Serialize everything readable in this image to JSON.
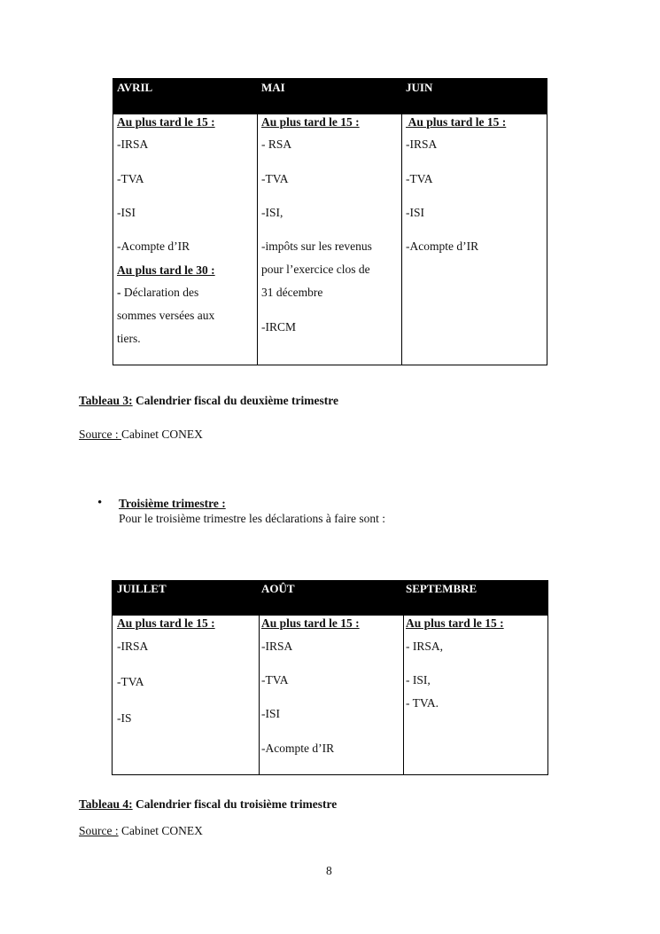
{
  "table3": {
    "headers": [
      "AVRIL",
      "MAI",
      "JUIN"
    ],
    "avril": {
      "deadline1": "Au plus tard le 15 :",
      "items1": [
        "-IRSA",
        "-TVA",
        "-ISI",
        "-Acompte d’IR"
      ],
      "deadline2": "Au plus tard le 30 :",
      "items2_dash": "-",
      "items2": [
        " Déclaration des",
        "sommes versées aux",
        "tiers."
      ]
    },
    "mai": {
      "deadline": "Au plus tard le 15 :",
      "items": [
        "- RSA",
        "-TVA",
        "-ISI,",
        "-impôts sur les revenus",
        "pour l’exercice clos de",
        "31 décembre",
        "-IRCM"
      ]
    },
    "juin": {
      "deadline": " Au plus tard le 15 :",
      "items": [
        "-IRSA",
        "-TVA",
        "-ISI",
        "-Acompte d’IR"
      ]
    },
    "caption_label": "Tableau 3:",
    "caption_text": " Calendrier fiscal du deuxième trimestre",
    "source_label": "Source : ",
    "source_text": "Cabinet CONEX"
  },
  "section": {
    "bullet": "•",
    "title": "Troisième trimestre :",
    "text": "Pour le troisième trimestre les déclarations à faire sont :"
  },
  "table4": {
    "headers": [
      "JUILLET",
      "AOÛT",
      "SEPTEMBRE"
    ],
    "juillet": {
      "deadline": "Au plus tard le 15 :",
      "items": [
        "-IRSA",
        "-TVA",
        "-IS"
      ]
    },
    "aout": {
      "deadline": "Au plus tard le 15 :",
      "items": [
        "-IRSA",
        "-TVA",
        "-ISI",
        "-Acompte d’IR"
      ]
    },
    "septembre": {
      "deadline": "Au plus tard le 15 :",
      "items": [
        "- IRSA,",
        "- ISI,",
        "- TVA."
      ]
    },
    "caption_label": "Tableau 4:",
    "caption_text": " Calendrier fiscal du troisième trimestre",
    "source_label": "Source :",
    "source_text": " Cabinet CONEX"
  },
  "page_number": "8"
}
